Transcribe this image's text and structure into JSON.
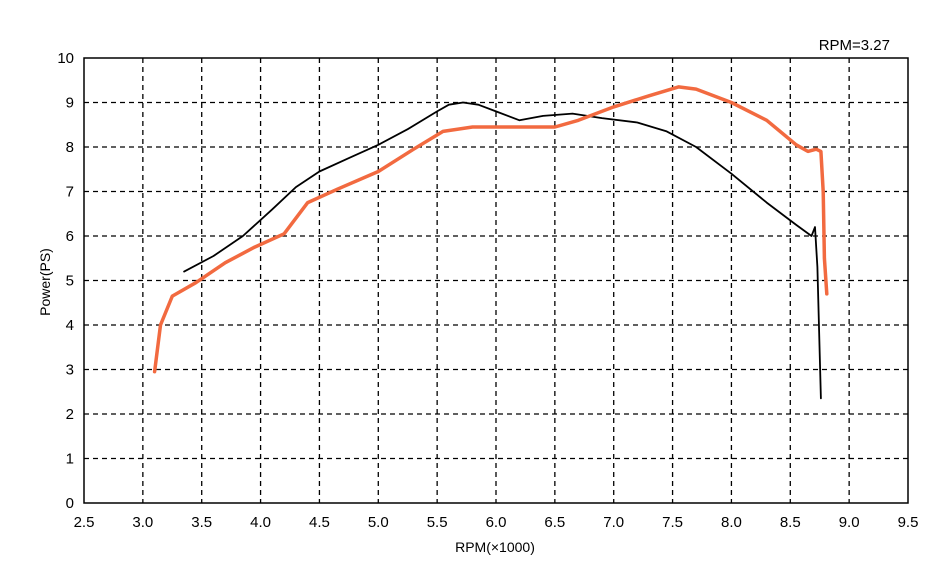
{
  "chart_data": {
    "type": "line",
    "title": "",
    "readout": "RPM=3.27",
    "xlabel": "RPM(×1000)",
    "ylabel": "Power(PS)",
    "xlim": [
      2.5,
      9.5
    ],
    "ylim": [
      0,
      10
    ],
    "xticks": [
      "2.5",
      "3.0",
      "3.5",
      "4.0",
      "4.5",
      "5.0",
      "5.5",
      "6.0",
      "6.5",
      "7.0",
      "7.5",
      "8.0",
      "8.5",
      "9.0",
      "9.5"
    ],
    "yticks": [
      "0",
      "1",
      "2",
      "3",
      "4",
      "5",
      "6",
      "7",
      "8",
      "9",
      "10"
    ],
    "grid": true,
    "series": [
      {
        "color": "#000000",
        "x": [
          3.35,
          3.6,
          3.85,
          4.1,
          4.3,
          4.5,
          4.75,
          5.0,
          5.25,
          5.5,
          5.6,
          5.72,
          5.85,
          6.0,
          6.2,
          6.4,
          6.65,
          6.9,
          7.2,
          7.45,
          7.7,
          8.0,
          8.3,
          8.55,
          8.68,
          8.71,
          8.73,
          8.76
        ],
        "y": [
          5.2,
          5.55,
          6.0,
          6.6,
          7.1,
          7.45,
          7.75,
          8.05,
          8.4,
          8.8,
          8.95,
          9.0,
          8.95,
          8.8,
          8.6,
          8.7,
          8.75,
          8.65,
          8.55,
          8.35,
          8.0,
          7.4,
          6.75,
          6.25,
          6.0,
          6.2,
          5.3,
          2.35
        ]
      },
      {
        "color": "#f26a40",
        "x": [
          3.1,
          3.15,
          3.25,
          3.45,
          3.7,
          3.95,
          4.2,
          4.4,
          4.65,
          5.0,
          5.3,
          5.55,
          5.8,
          6.0,
          6.3,
          6.5,
          6.7,
          7.0,
          7.3,
          7.55,
          7.7,
          8.0,
          8.3,
          8.55,
          8.65,
          8.72,
          8.76,
          8.78,
          8.79,
          8.81
        ],
        "y": [
          2.95,
          4.0,
          4.65,
          4.95,
          5.4,
          5.75,
          6.05,
          6.75,
          7.05,
          7.45,
          7.95,
          8.35,
          8.45,
          8.45,
          8.45,
          8.45,
          8.6,
          8.9,
          9.15,
          9.35,
          9.3,
          9.0,
          8.6,
          8.05,
          7.9,
          7.95,
          7.9,
          7.0,
          5.5,
          4.7
        ]
      }
    ]
  }
}
